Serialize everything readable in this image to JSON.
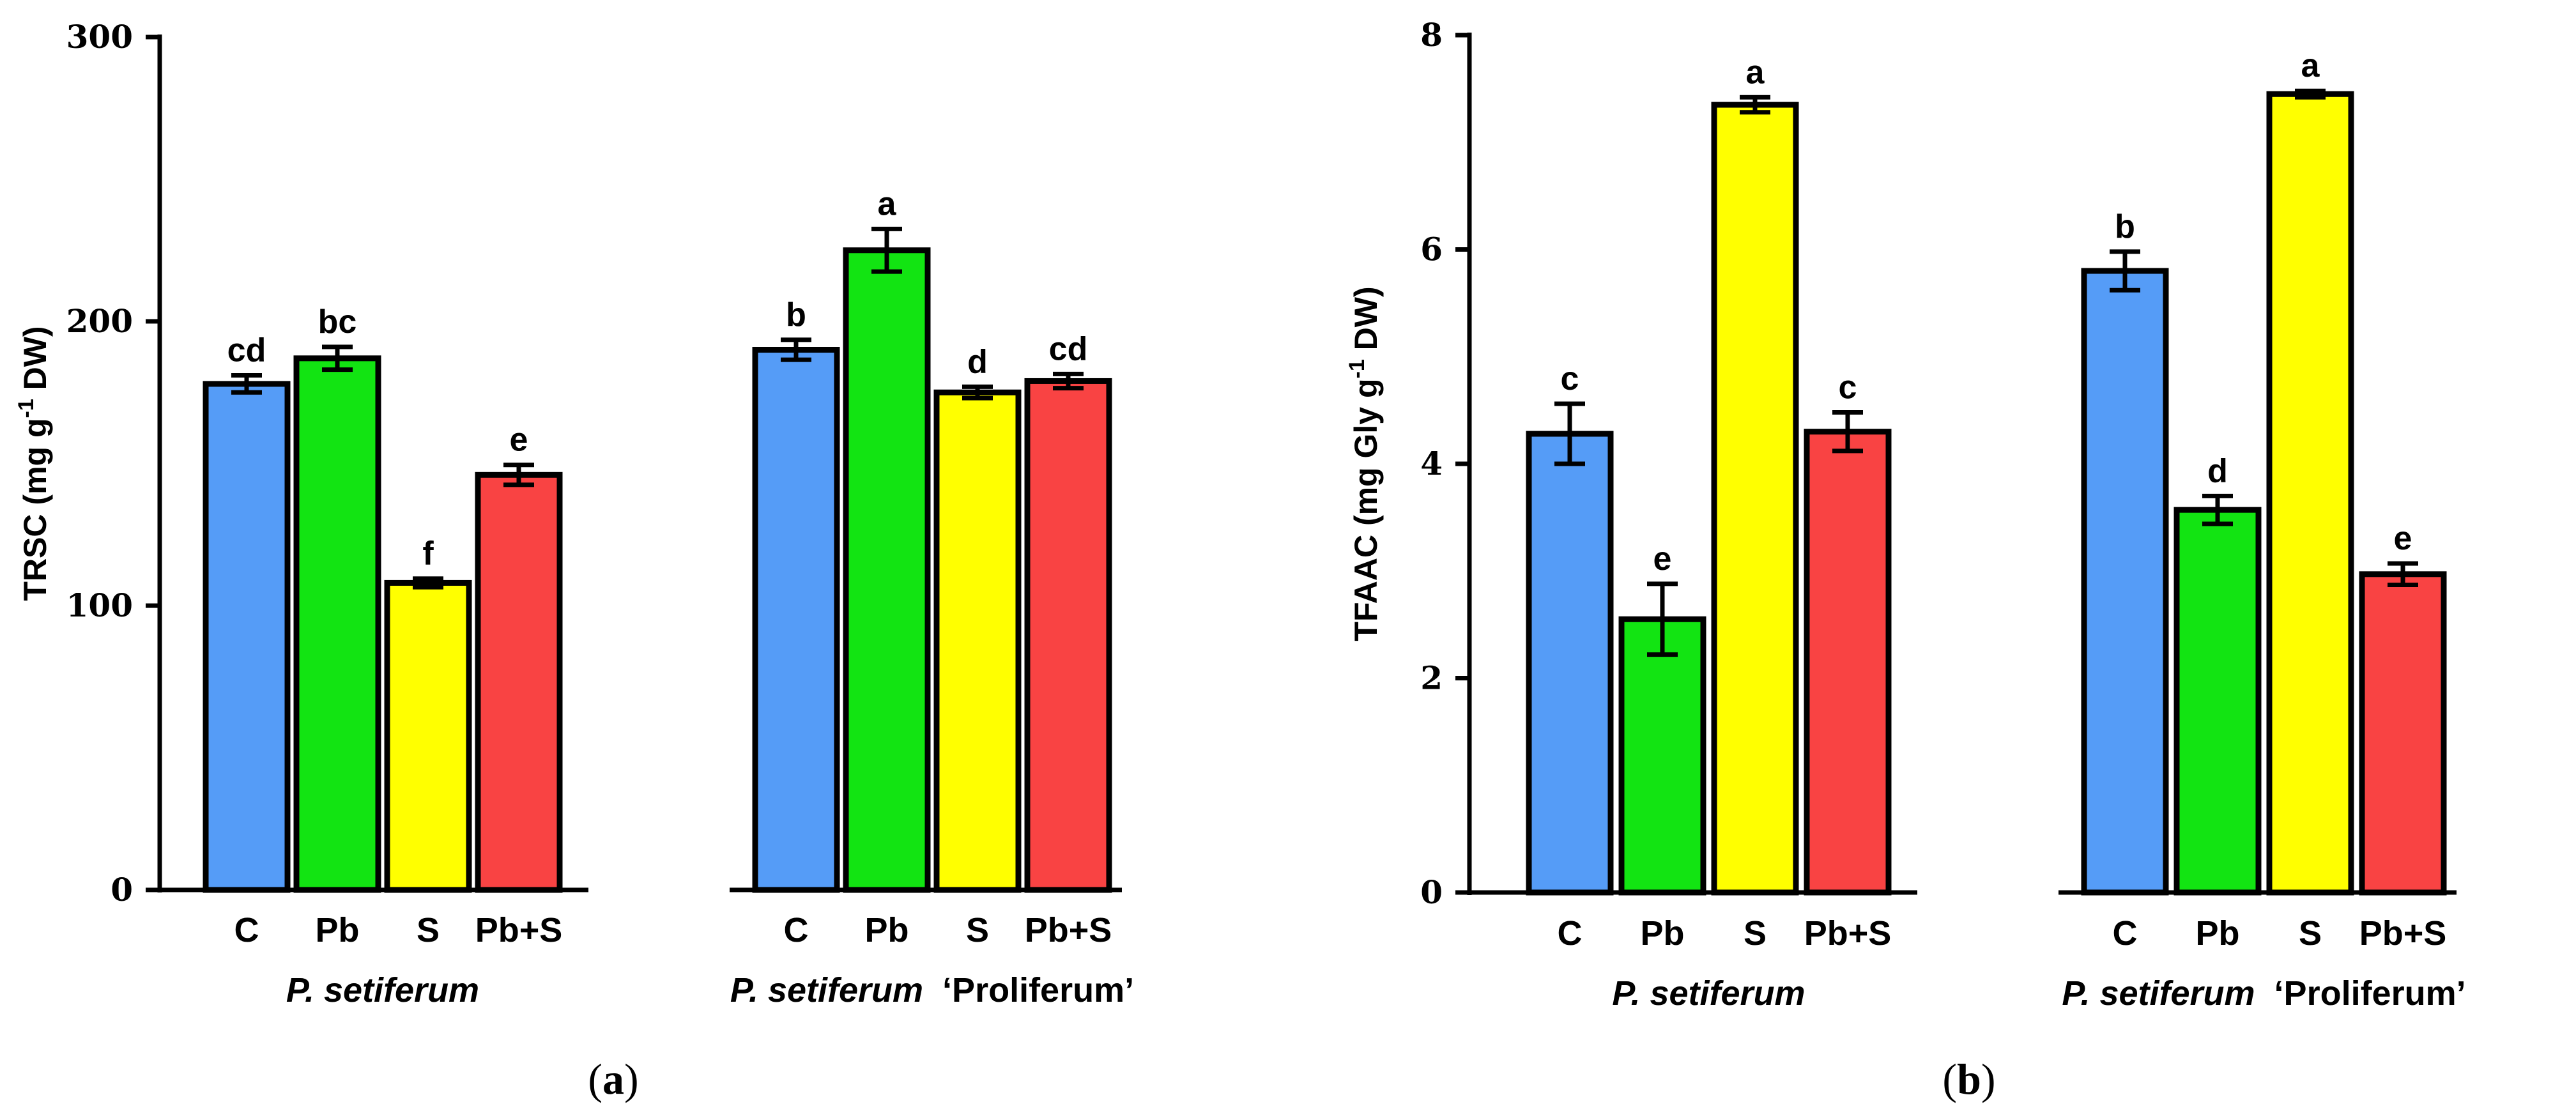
{
  "chart_data": [
    {
      "type": "bar",
      "panel": "a",
      "ylabel_main": "TRSC (mg g",
      "ylabel_sup": "-1",
      "ylabel_tail": " DW)",
      "ylim": [
        0,
        300
      ],
      "yticks": [
        0,
        100,
        200,
        300
      ],
      "groups": [
        {
          "name_italic": "P. setiferum",
          "name_suffix": "",
          "categories": [
            "C",
            "Pb",
            "S",
            "Pb+S"
          ],
          "values": [
            178,
            187,
            108,
            146
          ],
          "errors": [
            3,
            4,
            1.5,
            3.5
          ],
          "letters": [
            "cd",
            "bc",
            "f",
            "e"
          ]
        },
        {
          "name_italic": "P. setiferum",
          "name_suffix": "‘Proliferum’",
          "categories": [
            "C",
            "Pb",
            "S",
            "Pb+S"
          ],
          "values": [
            190,
            225,
            175,
            179
          ],
          "errors": [
            3.5,
            7.5,
            2,
            2.5
          ],
          "letters": [
            "b",
            "a",
            "d",
            "cd"
          ]
        }
      ],
      "colors": [
        "#559cf7",
        "#12e412",
        "#ffff00",
        "#f94343"
      ]
    },
    {
      "type": "bar",
      "panel": "b",
      "ylabel_main": "TFAAC (mg Gly g",
      "ylabel_sup": "-1",
      "ylabel_tail": " DW)",
      "ylim": [
        0,
        8
      ],
      "yticks": [
        0,
        2,
        4,
        6,
        8
      ],
      "groups": [
        {
          "name_italic": "P. setiferum",
          "name_suffix": "",
          "categories": [
            "C",
            "Pb",
            "S",
            "Pb+S"
          ],
          "values": [
            4.28,
            2.55,
            7.35,
            4.3
          ],
          "errors": [
            0.28,
            0.33,
            0.07,
            0.18
          ],
          "letters": [
            "c",
            "e",
            "a",
            "c"
          ]
        },
        {
          "name_italic": "P. setiferum",
          "name_suffix": "‘Proliferum’",
          "categories": [
            "C",
            "Pb",
            "S",
            "Pb+S"
          ],
          "values": [
            5.8,
            3.57,
            7.45,
            2.97
          ],
          "errors": [
            0.18,
            0.13,
            0.03,
            0.1
          ],
          "letters": [
            "b",
            "d",
            "a",
            "e"
          ]
        }
      ],
      "colors": [
        "#559cf7",
        "#12e412",
        "#ffff00",
        "#f94343"
      ]
    }
  ]
}
